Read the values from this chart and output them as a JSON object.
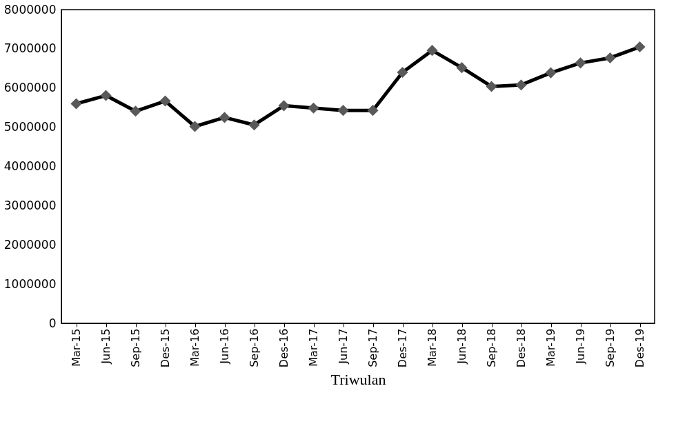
{
  "chart_data": {
    "type": "line",
    "xlabel": "Triwulan",
    "categories": [
      "Mar-15",
      "Jun-15",
      "Sep-15",
      "Des-15",
      "Mar-16",
      "Jun-16",
      "Sep-16",
      "Des-16",
      "Mar-17",
      "Jun-17",
      "Sep-17",
      "Des-17",
      "Mar-18",
      "Jun-18",
      "Sep-18",
      "Des-18",
      "Mar-19",
      "Jun-19",
      "Sep-19",
      "Des-19"
    ],
    "series": [
      {
        "color": "#000000",
        "values": [
          5600000,
          5810000,
          5410000,
          5670000,
          5020000,
          5250000,
          5060000,
          5550000,
          5490000,
          5430000,
          5430000,
          6400000,
          6960000,
          6520000,
          6040000,
          6080000,
          6390000,
          6640000,
          6770000,
          7050000
        ]
      }
    ],
    "ylim": [
      0,
      8000000
    ],
    "yticks": [
      0,
      1000000,
      2000000,
      3000000,
      4000000,
      5000000,
      6000000,
      7000000,
      8000000
    ],
    "marker": "diamond",
    "line_style": "solid",
    "grid": false
  }
}
